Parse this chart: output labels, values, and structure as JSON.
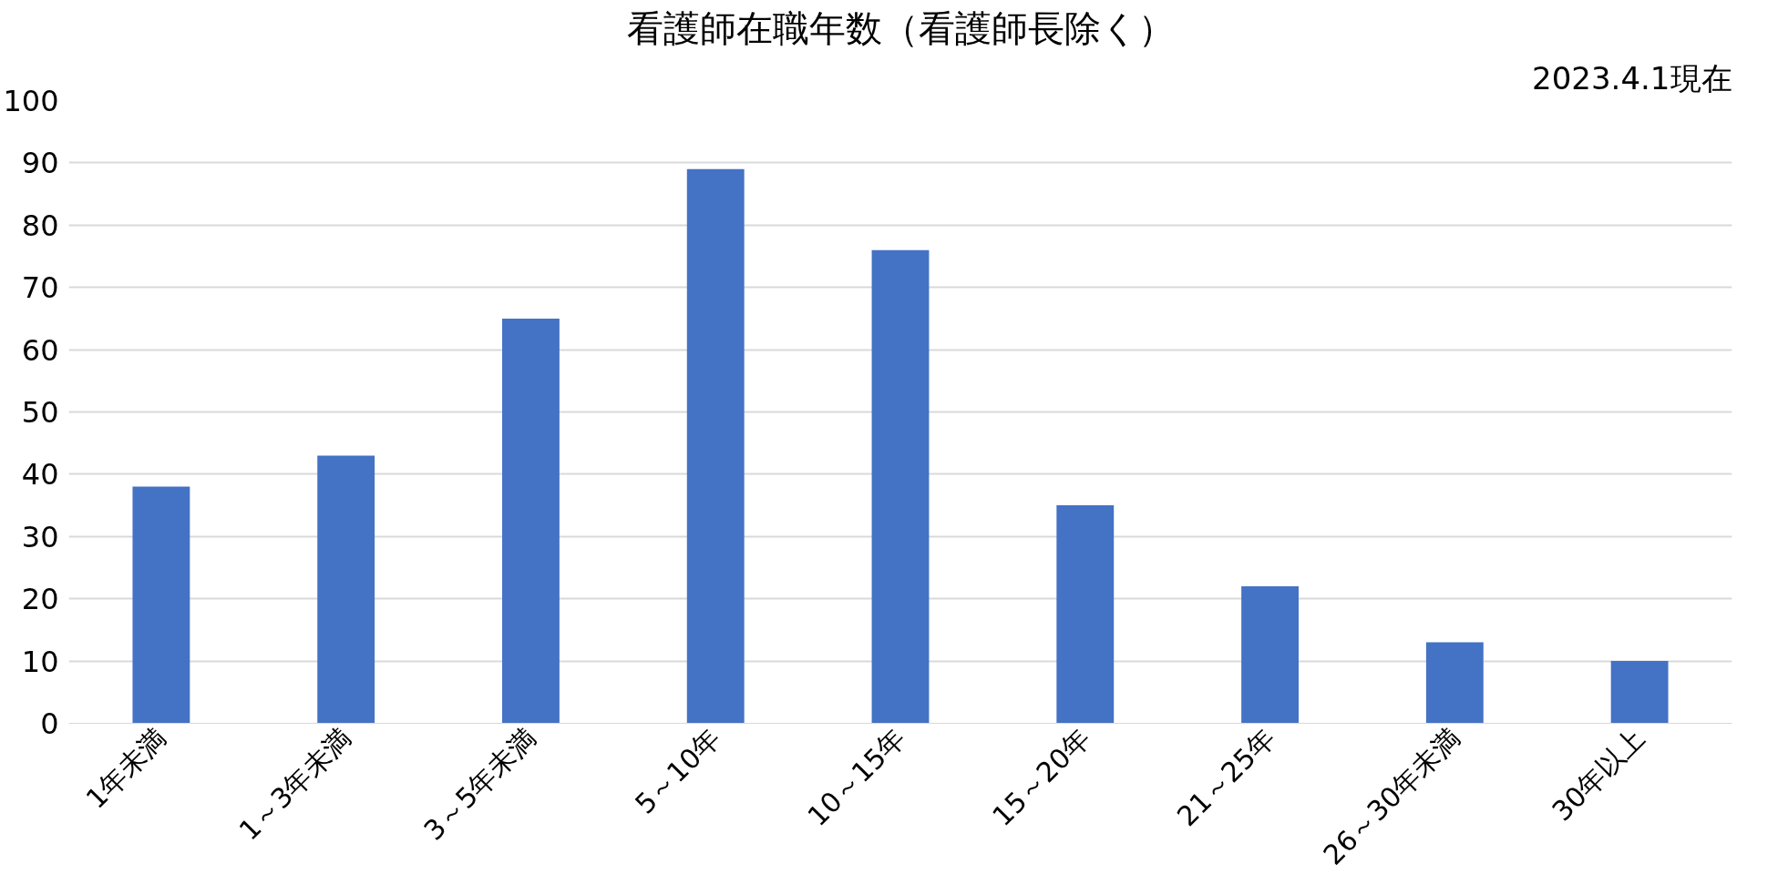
{
  "chart_data": {
    "type": "bar",
    "title": "看護師在職年数（看護師長除く）",
    "subtitle": "2023.4.1現在",
    "categories": [
      "1年未満",
      "1～3年未満",
      "3～5年未満",
      "5～10年",
      "10～15年",
      "15～20年",
      "21～25年",
      "26～30年未満",
      "30年以上"
    ],
    "values": [
      38,
      43,
      65,
      89,
      76,
      35,
      22,
      13,
      10
    ],
    "color": "#4472c4",
    "ylim": [
      0,
      100
    ],
    "yticks": [
      0,
      10,
      20,
      30,
      40,
      50,
      60,
      70,
      80,
      90,
      100
    ],
    "grid": "y"
  }
}
